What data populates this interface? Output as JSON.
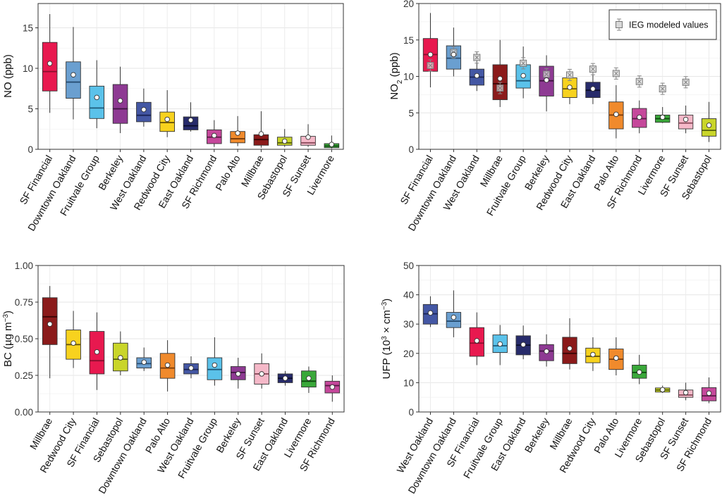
{
  "chart_data": [
    {
      "id": "no",
      "type": "boxplot",
      "ylabel": "NO (ppb)",
      "ylim": [
        0,
        18
      ],
      "yticks": [
        0,
        5,
        10,
        15
      ],
      "grid": true,
      "legend": null,
      "boxes": [
        {
          "category": "SF Financial",
          "color": "#E8194F",
          "median_color": "#8A0F2E",
          "whisker_low": 4.5,
          "q1": 7.2,
          "median": 9.6,
          "q3": 13.2,
          "whisker_high": 16.7,
          "mean": 10.6
        },
        {
          "category": "Downtown Oakland",
          "color": "#6A9FD0",
          "median_color": "#274D72",
          "whisker_low": 3.7,
          "q1": 6.3,
          "median": 8.3,
          "q3": 10.8,
          "whisker_high": 15.1,
          "mean": 9.2
        },
        {
          "category": "Fruitvale Group",
          "color": "#5BC2EA",
          "median_color": "#1E5A7A",
          "whisker_low": 2.6,
          "q1": 3.8,
          "median": 5.1,
          "q3": 7.8,
          "whisker_high": 11.0,
          "mean": 6.4
        },
        {
          "category": "Berkeley",
          "color": "#8E3A93",
          "median_color": "#3E1440",
          "whisker_low": 2.0,
          "q1": 3.2,
          "median": 5.0,
          "q3": 8.0,
          "whisker_high": 10.2,
          "mean": 6.0
        },
        {
          "category": "West Oakland",
          "color": "#4457A4",
          "median_color": "#1A2456",
          "whisker_low": 2.8,
          "q1": 3.4,
          "median": 4.2,
          "q3": 5.8,
          "whisker_high": 7.5,
          "mean": 4.9
        },
        {
          "category": "Redwood City",
          "color": "#F7D21E",
          "median_color": "#6B5608",
          "whisker_low": 1.5,
          "q1": 2.2,
          "median": 3.3,
          "q3": 4.6,
          "whisker_high": 7.3,
          "mean": 3.7
        },
        {
          "category": "East Oakland",
          "color": "#272B6B",
          "median_color": "#0A0C2A",
          "whisker_low": 2.2,
          "q1": 2.4,
          "median": 2.9,
          "q3": 4.0,
          "whisker_high": 5.8,
          "mean": 3.6
        },
        {
          "category": "SF Richmond",
          "color": "#C5489B",
          "median_color": "#5A1A46",
          "whisker_low": 0.3,
          "q1": 0.7,
          "median": 1.5,
          "q3": 2.4,
          "whisker_high": 3.6,
          "mean": 1.7
        },
        {
          "category": "Palo Alto",
          "color": "#F08A2C",
          "median_color": "#7A3A08",
          "whisker_low": 0.4,
          "q1": 0.8,
          "median": 1.3,
          "q3": 2.2,
          "whisker_high": 4.1,
          "mean": 2.0
        },
        {
          "category": "Millbrae",
          "color": "#8B1A1A",
          "median_color": "#3A0606",
          "whisker_low": 0.2,
          "q1": 0.5,
          "median": 1.2,
          "q3": 1.8,
          "whisker_high": 4.7,
          "mean": 1.9
        },
        {
          "category": "Sebastopol",
          "color": "#C9D52A",
          "median_color": "#55600A",
          "whisker_low": 0.3,
          "q1": 0.5,
          "median": 0.8,
          "q3": 1.5,
          "whisker_high": 2.5,
          "mean": 1.0
        },
        {
          "category": "SF Sunset",
          "color": "#F5B8C8",
          "median_color": "#8A4A5A",
          "whisker_low": 0.3,
          "q1": 0.5,
          "median": 0.8,
          "q3": 1.6,
          "whisker_high": 3.1,
          "mean": 1.5
        },
        {
          "category": "Livermore",
          "color": "#3AA83A",
          "median_color": "#0F4A0F",
          "whisker_low": 0.1,
          "q1": 0.2,
          "median": 0.4,
          "q3": 0.7,
          "whisker_high": 1.7,
          "mean": 0.6
        }
      ]
    },
    {
      "id": "no2",
      "type": "boxplot",
      "ylabel_main": "NO",
      "ylabel_sub": "2",
      "ylabel_rest": " (ppb)",
      "ylim": [
        0,
        20
      ],
      "yticks": [
        0,
        5,
        10,
        15,
        20
      ],
      "grid": true,
      "legend": {
        "position": "top-right",
        "label": "IEG modeled values"
      },
      "boxes": [
        {
          "category": "SF Financial",
          "color": "#E8194F",
          "median_color": "#8A0F2E",
          "whisker_low": 8.5,
          "q1": 10.7,
          "median": 13.0,
          "q3": 15.2,
          "whisker_high": 18.7,
          "mean": 13.0,
          "modeled": 11.5
        },
        {
          "category": "Downtown Oakland",
          "color": "#6A9FD0",
          "median_color": "#274D72",
          "whisker_low": 10.0,
          "q1": 11.0,
          "median": 12.5,
          "q3": 14.2,
          "whisker_high": 16.7,
          "mean": 13.0,
          "modeled": 13.3
        },
        {
          "category": "West Oakland",
          "color": "#4457A4",
          "median_color": "#1A2456",
          "whisker_low": 8.0,
          "q1": 8.8,
          "median": 9.9,
          "q3": 11.0,
          "whisker_high": 13.3,
          "mean": 10.1,
          "modeled": 12.6
        },
        {
          "category": "Millbrae",
          "color": "#8B1A1A",
          "median_color": "#3A0606",
          "whisker_low": 5.8,
          "q1": 6.8,
          "median": 9.0,
          "q3": 11.6,
          "whisker_high": 15.0,
          "mean": 9.7,
          "modeled": 8.4
        },
        {
          "category": "Fruitvale Group",
          "color": "#5BC2EA",
          "median_color": "#1E5A7A",
          "whisker_low": 7.0,
          "q1": 8.4,
          "median": 9.4,
          "q3": 11.6,
          "whisker_high": 14.1,
          "mean": 10.1,
          "modeled": 11.8
        },
        {
          "category": "Berkeley",
          "color": "#8E3A93",
          "median_color": "#3E1440",
          "whisker_low": 5.2,
          "q1": 7.3,
          "median": 9.4,
          "q3": 11.4,
          "whisker_high": 12.9,
          "mean": 9.5,
          "modeled": 10.3
        },
        {
          "category": "Redwood City",
          "color": "#F7D21E",
          "median_color": "#6B5608",
          "whisker_low": 6.2,
          "q1": 7.1,
          "median": 8.3,
          "q3": 9.8,
          "whisker_high": 11.0,
          "mean": 8.5,
          "modeled": 10.2
        },
        {
          "category": "East Oakland",
          "color": "#272B6B",
          "median_color": "#0A0C2A",
          "whisker_low": 6.2,
          "q1": 7.1,
          "median": 8.1,
          "q3": 9.2,
          "whisker_high": 10.8,
          "mean": 8.3,
          "modeled": 11.0
        },
        {
          "category": "Palo Alto",
          "color": "#F08A2C",
          "median_color": "#7A3A08",
          "whisker_low": 1.5,
          "q1": 2.8,
          "median": 4.7,
          "q3": 6.5,
          "whisker_high": 8.8,
          "mean": 4.8,
          "modeled": 10.4
        },
        {
          "category": "SF Richmond",
          "color": "#C5489B",
          "median_color": "#5A1A46",
          "whisker_low": 2.2,
          "q1": 3.0,
          "median": 4.2,
          "q3": 5.6,
          "whisker_high": 6.7,
          "mean": 4.4,
          "modeled": 9.3
        },
        {
          "category": "Livermore",
          "color": "#3AA83A",
          "median_color": "#0F4A0F",
          "whisker_low": 3.6,
          "q1": 3.7,
          "median": 4.2,
          "q3": 4.7,
          "whisker_high": 5.8,
          "mean": 4.4,
          "modeled": 8.3
        },
        {
          "category": "SF Sunset",
          "color": "#F5B8C8",
          "median_color": "#8A4A5A",
          "whisker_low": 2.2,
          "q1": 2.8,
          "median": 3.6,
          "q3": 4.7,
          "whisker_high": 6.0,
          "mean": 4.1,
          "modeled": 9.2
        },
        {
          "category": "Sebastopol",
          "color": "#C9D52A",
          "median_color": "#55600A",
          "whisker_low": 1.0,
          "q1": 1.8,
          "median": 2.6,
          "q3": 4.2,
          "whisker_high": 6.5,
          "mean": 3.3
        }
      ]
    },
    {
      "id": "bc",
      "type": "boxplot",
      "ylabel_main": "BC (µg m",
      "ylabel_sup": "−3",
      "ylabel_rest": ")",
      "ylim": [
        0,
        1
      ],
      "yticks": [
        0.0,
        0.25,
        0.5,
        0.75,
        1.0
      ],
      "ytick_labels": [
        "0.00",
        "0.25",
        "0.50",
        "0.75",
        "1.00"
      ],
      "grid": true,
      "legend": null,
      "boxes": [
        {
          "category": "Millbrae",
          "color": "#8B1A1A",
          "median_color": "#3A0606",
          "whisker_low": 0.23,
          "q1": 0.46,
          "median": 0.65,
          "q3": 0.78,
          "whisker_high": 0.86,
          "mean": 0.6
        },
        {
          "category": "Redwood City",
          "color": "#F7D21E",
          "median_color": "#6B5608",
          "whisker_low": 0.3,
          "q1": 0.36,
          "median": 0.46,
          "q3": 0.56,
          "whisker_high": 0.69,
          "mean": 0.47
        },
        {
          "category": "SF Financial",
          "color": "#E8194F",
          "median_color": "#8A0F2E",
          "whisker_low": 0.15,
          "q1": 0.26,
          "median": 0.35,
          "q3": 0.55,
          "whisker_high": 0.68,
          "mean": 0.41
        },
        {
          "category": "Sebastopol",
          "color": "#C9D52A",
          "median_color": "#55600A",
          "whisker_low": 0.25,
          "q1": 0.28,
          "median": 0.36,
          "q3": 0.47,
          "whisker_high": 0.55,
          "mean": 0.37
        },
        {
          "category": "Downtown Oakland",
          "color": "#6A9FD0",
          "median_color": "#274D72",
          "whisker_low": 0.28,
          "q1": 0.3,
          "median": 0.33,
          "q3": 0.37,
          "whisker_high": 0.44,
          "mean": 0.34
        },
        {
          "category": "Palo Alto",
          "color": "#F08A2C",
          "median_color": "#7A3A08",
          "whisker_low": 0.14,
          "q1": 0.23,
          "median": 0.3,
          "q3": 0.4,
          "whisker_high": 0.49,
          "mean": 0.32
        },
        {
          "category": "West Oakland",
          "color": "#4457A4",
          "median_color": "#1A2456",
          "whisker_low": 0.23,
          "q1": 0.26,
          "median": 0.29,
          "q3": 0.33,
          "whisker_high": 0.38,
          "mean": 0.3
        },
        {
          "category": "Fruitvale Group",
          "color": "#5BC2EA",
          "median_color": "#1E5A7A",
          "whisker_low": 0.18,
          "q1": 0.22,
          "median": 0.29,
          "q3": 0.37,
          "whisker_high": 0.51,
          "mean": 0.32
        },
        {
          "category": "Berkeley",
          "color": "#8E3A93",
          "median_color": "#3E1440",
          "whisker_low": 0.16,
          "q1": 0.22,
          "median": 0.27,
          "q3": 0.31,
          "whisker_high": 0.37,
          "mean": 0.26
        },
        {
          "category": "SF Sunset",
          "color": "#F5B8C8",
          "median_color": "#8A4A5A",
          "whisker_low": 0.16,
          "q1": 0.19,
          "median": 0.26,
          "q3": 0.33,
          "whisker_high": 0.4,
          "mean": 0.26
        },
        {
          "category": "East Oakland",
          "color": "#272B6B",
          "median_color": "#0A0C2A",
          "whisker_low": 0.18,
          "q1": 0.2,
          "median": 0.23,
          "q3": 0.26,
          "whisker_high": 0.28,
          "mean": 0.23
        },
        {
          "category": "Livermore",
          "color": "#3AA83A",
          "median_color": "#0F4A0F",
          "whisker_low": 0.13,
          "q1": 0.17,
          "median": 0.21,
          "q3": 0.28,
          "whisker_high": 0.31,
          "mean": 0.23
        },
        {
          "category": "SF Richmond",
          "color": "#C5489B",
          "median_color": "#5A1A46",
          "whisker_low": 0.07,
          "q1": 0.13,
          "median": 0.18,
          "q3": 0.21,
          "whisker_high": 0.25,
          "mean": 0.17
        }
      ]
    },
    {
      "id": "ufp",
      "type": "boxplot",
      "ylabel_main": "UFP (10",
      "ylabel_sup": "3",
      "ylabel_rest": " × cm",
      "ylabel_sup2": "−3",
      "ylabel_end": ")",
      "ylim": [
        0,
        50
      ],
      "yticks": [
        0,
        10,
        20,
        30,
        40,
        50
      ],
      "grid": true,
      "legend": null,
      "boxes": [
        {
          "category": "West Oakland",
          "color": "#4457A4",
          "median_color": "#1A2456",
          "whisker_low": 29.0,
          "q1": 30.0,
          "median": 33.5,
          "q3": 36.7,
          "whisker_high": 39.5,
          "mean": 33.8
        },
        {
          "category": "Downtown Oakland",
          "color": "#6A9FD0",
          "median_color": "#274D72",
          "whisker_low": 25.5,
          "q1": 28.8,
          "median": 31.0,
          "q3": 34.0,
          "whisker_high": 41.5,
          "mean": 32.3
        },
        {
          "category": "SF Financial",
          "color": "#E8194F",
          "median_color": "#8A0F2E",
          "whisker_low": 16.0,
          "q1": 19.0,
          "median": 23.5,
          "q3": 28.8,
          "whisker_high": 34.0,
          "mean": 24.3
        },
        {
          "category": "Fruitvale Group",
          "color": "#5BC2EA",
          "median_color": "#1E5A7A",
          "whisker_low": 16.0,
          "q1": 20.3,
          "median": 22.6,
          "q3": 26.3,
          "whisker_high": 29.7,
          "mean": 23.2
        },
        {
          "category": "East Oakland",
          "color": "#272B6B",
          "median_color": "#0A0C2A",
          "whisker_low": 18.0,
          "q1": 19.5,
          "median": 22.8,
          "q3": 26.0,
          "whisker_high": 29.5,
          "mean": 23.0
        },
        {
          "category": "Berkeley",
          "color": "#8E3A93",
          "median_color": "#3E1440",
          "whisker_low": 15.5,
          "q1": 17.5,
          "median": 20.8,
          "q3": 23.0,
          "whisker_high": 26.5,
          "mean": 20.7
        },
        {
          "category": "Millbrae",
          "color": "#8B1A1A",
          "median_color": "#3A0606",
          "whisker_low": 14.5,
          "q1": 16.5,
          "median": 20.0,
          "q3": 25.5,
          "whisker_high": 32.0,
          "mean": 21.7
        },
        {
          "category": "Redwood City",
          "color": "#F7D21E",
          "median_color": "#6B5608",
          "whisker_low": 14.0,
          "q1": 16.8,
          "median": 19.0,
          "q3": 21.8,
          "whisker_high": 25.5,
          "mean": 19.6
        },
        {
          "category": "Palo Alto",
          "color": "#F08A2C",
          "median_color": "#7A3A08",
          "whisker_low": 12.5,
          "q1": 14.5,
          "median": 18.0,
          "q3": 21.5,
          "whisker_high": 25.5,
          "mean": 18.4
        },
        {
          "category": "Livermore",
          "color": "#3AA83A",
          "median_color": "#0F4A0F",
          "whisker_low": 9.5,
          "q1": 11.5,
          "median": 13.5,
          "q3": 16.0,
          "whisker_high": 19.5,
          "mean": 13.6
        },
        {
          "category": "Sebastopol",
          "color": "#C9D52A",
          "median_color": "#55600A",
          "whisker_low": 6.5,
          "q1": 6.8,
          "median": 7.5,
          "q3": 8.2,
          "whisker_high": 9.0,
          "mean": 7.6
        },
        {
          "category": "SF Sunset",
          "color": "#F5B8C8",
          "median_color": "#8A4A5A",
          "whisker_low": 4.0,
          "q1": 5.0,
          "median": 5.8,
          "q3": 7.5,
          "whisker_high": 10.0,
          "mean": 6.6
        },
        {
          "category": "SF Richmond",
          "color": "#C5489B",
          "median_color": "#5A1A46",
          "whisker_low": 3.0,
          "q1": 3.8,
          "median": 5.5,
          "q3": 8.3,
          "whisker_high": 11.8,
          "mean": 6.4
        }
      ]
    }
  ]
}
